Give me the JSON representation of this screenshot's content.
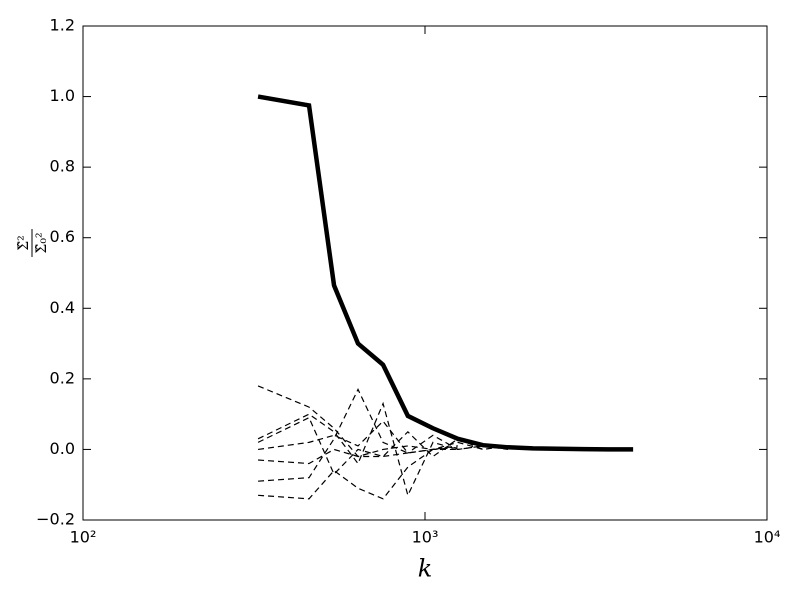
{
  "chart_data": {
    "type": "line",
    "xscale": "log",
    "xlabel": "k",
    "ylabel": {
      "numerator": "Σ̂²",
      "denominator": "Σ̂₀²"
    },
    "x": [
      325,
      458,
      542,
      637,
      754,
      891,
      1055,
      1248,
      1478,
      1749,
      2070,
      2450,
      2900,
      3430,
      4060
    ],
    "series": [
      {
        "color": "#000000",
        "linewidth": 4.5,
        "style": "solid",
        "values": [
          1.0,
          0.975,
          0.465,
          0.3,
          0.24,
          0.095,
          0.06,
          0.03,
          0.012,
          0.006,
          0.003,
          0.002,
          0.001,
          0.0,
          0.0
        ]
      },
      {
        "color": "#000000",
        "linewidth": 1.2,
        "style": "dashed",
        "values": [
          0.18,
          0.12,
          0.06,
          -0.02,
          0.0,
          0.01,
          0.0,
          0.005,
          null,
          null,
          null,
          null,
          null,
          null,
          null
        ]
      },
      {
        "color": "#000000",
        "linewidth": 1.2,
        "style": "dashed",
        "values": [
          -0.13,
          -0.14,
          -0.06,
          -0.11,
          -0.14,
          -0.05,
          0.0,
          0.01,
          null,
          null,
          null,
          null,
          null,
          null,
          null
        ]
      },
      {
        "color": "#000000",
        "linewidth": 1.2,
        "style": "dashed",
        "values": [
          -0.09,
          -0.08,
          0.03,
          0.17,
          0.02,
          -0.01,
          0.0,
          0.0,
          null,
          null,
          null,
          null,
          null,
          null,
          null
        ]
      },
      {
        "color": "#000000",
        "linewidth": 1.2,
        "style": "dashed",
        "values": [
          0.03,
          0.1,
          0.05,
          -0.04,
          0.13,
          -0.13,
          0.02,
          0.0,
          0.01,
          null,
          null,
          null,
          null,
          null,
          null
        ]
      },
      {
        "color": "#000000",
        "linewidth": 1.2,
        "style": "dashed",
        "values": [
          0.02,
          0.09,
          -0.07,
          0.0,
          -0.02,
          0.05,
          -0.02,
          0.03,
          0.0,
          0.01,
          null,
          null,
          null,
          null,
          null
        ]
      },
      {
        "color": "#000000",
        "linewidth": 1.2,
        "style": "dashed",
        "values": [
          -0.03,
          -0.04,
          0.0,
          -0.02,
          -0.02,
          -0.01,
          0.04,
          0.0,
          0.01,
          0.0,
          null,
          null,
          null,
          null,
          null
        ]
      },
      {
        "color": "#000000",
        "linewidth": 1.2,
        "style": "dashed",
        "values": [
          0.0,
          0.02,
          0.04,
          0.01,
          0.08,
          -0.01,
          0.0,
          0.02,
          0.0,
          null,
          null,
          null,
          null,
          null,
          null
        ]
      }
    ],
    "xlim": [
      100,
      10000
    ],
    "xticks": [
      {
        "value": 100,
        "label": "10²"
      },
      {
        "value": 1000,
        "label": "10³"
      },
      {
        "value": 10000,
        "label": "10⁴"
      }
    ],
    "ylim": [
      -0.2,
      1.2
    ],
    "yticks": [
      {
        "value": -0.2,
        "label": "−0.2"
      },
      {
        "value": 0,
        "label": "0.0"
      },
      0.2,
      0.4,
      0.6,
      0.8,
      {
        "value": 1,
        "label": "1.0"
      },
      1.2
    ],
    "grid": false
  }
}
